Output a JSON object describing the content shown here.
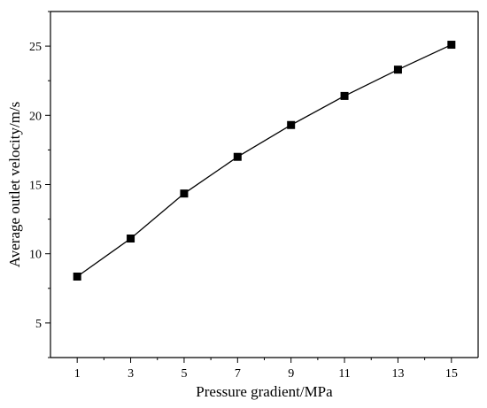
{
  "chart_data": {
    "type": "line",
    "title": "",
    "xlabel": "Pressure gradient/MPa",
    "ylabel": "Average outlet velocity/m/s",
    "xlim": [
      0,
      16
    ],
    "ylim": [
      2.5,
      27.5
    ],
    "xticks": [
      1,
      3,
      5,
      7,
      9,
      11,
      13,
      15
    ],
    "yticks": [
      5,
      10,
      15,
      20,
      25
    ],
    "grid": false,
    "legend": "none",
    "marker": "square",
    "color": "#000000",
    "series": [
      {
        "x": [
          1,
          3,
          5,
          7,
          9,
          11,
          13,
          15
        ],
        "values": [
          8.35,
          11.1,
          14.35,
          17.0,
          19.3,
          21.4,
          23.3,
          25.1
        ]
      }
    ]
  }
}
